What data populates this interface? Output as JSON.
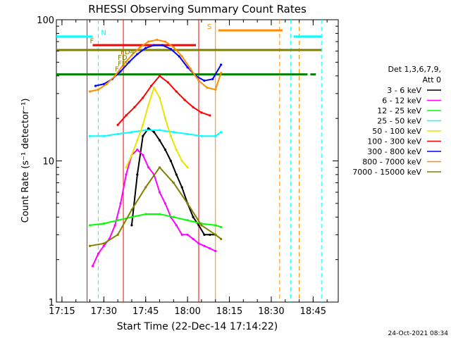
{
  "chart_data": {
    "type": "line",
    "title": "RHESSI Observing Summary Count Rates",
    "xlabel": "Start Time (22-Dec-14 17:14:22)",
    "ylabel": "Count Rate (s⁻¹ detector⁻¹)",
    "yscale": "log",
    "ylim": [
      1,
      100
    ],
    "xlim": [
      "17:13",
      "18:54"
    ],
    "x_ticks": [
      "17:15",
      "17:30",
      "17:45",
      "18:00",
      "18:15",
      "18:30",
      "18:45"
    ],
    "y_ticks": [
      "1",
      "10",
      "100"
    ],
    "legend_title": [
      "Det 1,3,6,7,9,",
      "Att 0"
    ],
    "legend_position": "right",
    "timestamp": "24-Oct-2021 08:34",
    "series": [
      {
        "name": "3 - 6 keV",
        "color": "#000000",
        "x": [
          "17:40",
          "17:42",
          "17:44",
          "17:46",
          "17:48",
          "17:50",
          "17:52",
          "17:54",
          "17:56",
          "17:58",
          "18:00",
          "18:02",
          "18:04",
          "18:06",
          "18:08",
          "18:10"
        ],
        "values": [
          3.5,
          8,
          15,
          17,
          16,
          14,
          12,
          10,
          8,
          6.5,
          5,
          4,
          3.5,
          3,
          3,
          3
        ]
      },
      {
        "name": "6 - 12 keV",
        "color": "#ff00ff",
        "x": [
          "17:26",
          "17:28",
          "17:30",
          "17:32",
          "17:34",
          "17:36",
          "17:38",
          "17:40",
          "17:42",
          "17:44",
          "17:46",
          "17:48",
          "17:50",
          "17:52",
          "17:54",
          "17:56",
          "17:58",
          "18:00",
          "18:02",
          "18:04",
          "18:06",
          "18:08",
          "18:10"
        ],
        "values": [
          1.8,
          2.2,
          2.5,
          2.8,
          3.5,
          5,
          8,
          11,
          12,
          11,
          9,
          8,
          6,
          5,
          4,
          3.5,
          3,
          3,
          2.8,
          2.6,
          2.5,
          2.4,
          2.3
        ]
      },
      {
        "name": "12 - 25 keV",
        "color": "#00ff00",
        "x": [
          "17:25",
          "17:30",
          "17:35",
          "17:40",
          "17:45",
          "17:50",
          "17:55",
          "18:00",
          "18:05",
          "18:10",
          "18:12"
        ],
        "values": [
          3.5,
          3.6,
          3.8,
          4,
          4.2,
          4.2,
          4,
          3.8,
          3.6,
          3.5,
          3.4
        ]
      },
      {
        "name": "25 - 50 keV",
        "color": "#00ffff",
        "x": [
          "17:25",
          "17:30",
          "17:35",
          "17:40",
          "17:45",
          "17:50",
          "17:55",
          "18:00",
          "18:05",
          "18:10",
          "18:12"
        ],
        "values": [
          15,
          15,
          15.5,
          16,
          16.5,
          16.5,
          16,
          15.5,
          15,
          15,
          16
        ]
      },
      {
        "name": "50 - 100 keV",
        "color": "#e6e600",
        "x": [
          "17:38",
          "17:40",
          "17:42",
          "17:44",
          "17:46",
          "17:48",
          "17:50",
          "17:52",
          "17:54",
          "17:56",
          "17:58",
          "18:00"
        ],
        "values": [
          9,
          11,
          14,
          18,
          25,
          33,
          28,
          20,
          15,
          12,
          10,
          9
        ]
      },
      {
        "name": "100 - 300 keV",
        "color": "#ff0000",
        "x": [
          "17:35",
          "17:38",
          "17:41",
          "17:44",
          "17:47",
          "17:50",
          "17:53",
          "17:56",
          "17:59",
          "18:02",
          "18:05",
          "18:08"
        ],
        "values": [
          18,
          21,
          24,
          28,
          34,
          40,
          36,
          31,
          27,
          24,
          22,
          21
        ]
      },
      {
        "name": "300 - 800 keV",
        "color": "#0000ff",
        "x": [
          "17:27",
          "17:30",
          "17:33",
          "17:36",
          "17:39",
          "17:42",
          "17:45",
          "17:48",
          "17:51",
          "17:54",
          "17:57",
          "18:00",
          "18:03",
          "18:06",
          "18:09",
          "18:12"
        ],
        "values": [
          34,
          35,
          38,
          43,
          50,
          57,
          63,
          66,
          66,
          62,
          55,
          46,
          40,
          37,
          38,
          48
        ]
      },
      {
        "name": "800 - 7000 keV",
        "color": "#ff8c00",
        "x": [
          "17:25",
          "17:28",
          "17:31",
          "17:34",
          "17:37",
          "17:40",
          "17:43",
          "17:46",
          "17:49",
          "17:52",
          "17:55",
          "17:58",
          "18:01",
          "18:04",
          "18:07",
          "18:10",
          "18:12"
        ],
        "values": [
          31,
          32,
          35,
          40,
          48,
          56,
          64,
          70,
          72,
          70,
          64,
          55,
          45,
          37,
          33,
          32,
          42
        ]
      },
      {
        "name": "7000 - 15000 keV",
        "color": "#808000",
        "x": [
          "17:25",
          "17:30",
          "17:35",
          "17:40",
          "17:45",
          "17:50",
          "17:55",
          "18:00",
          "18:05",
          "18:10",
          "18:12"
        ],
        "values": [
          2.5,
          2.6,
          3,
          4.5,
          6.5,
          9,
          7,
          5,
          3.5,
          3,
          2.8
        ]
      }
    ],
    "flag_lines": [
      {
        "color": "#00ffff",
        "y": 76,
        "segments": [
          [
            "17:13",
            "17:26"
          ],
          [
            "18:38",
            "18:48"
          ]
        ]
      },
      {
        "color": "#ff0000",
        "y": 66,
        "segments": [
          [
            "17:26",
            "18:03"
          ]
        ]
      },
      {
        "color": "#ff8c00",
        "y": 84,
        "segments": [
          [
            "18:11",
            "18:34"
          ]
        ]
      },
      {
        "color": "#808000",
        "y": 61,
        "segments": [
          [
            "17:13",
            "18:48"
          ]
        ]
      },
      {
        "color": "#008000",
        "y": 41,
        "segments": [
          [
            "17:13",
            "18:33"
          ],
          [
            "18:33",
            "18:43"
          ],
          [
            "18:44",
            "18:46"
          ]
        ]
      }
    ],
    "vertical_lines": [
      {
        "color": "#00ffff",
        "style": "dashed",
        "x": "17:28"
      },
      {
        "color": "#00ffff",
        "style": "dashed",
        "x": "18:37"
      },
      {
        "color": "#00ffff",
        "style": "dashed",
        "x": "18:48"
      },
      {
        "color": "#ff8c00",
        "style": "dashed",
        "x": "18:33"
      },
      {
        "color": "#ff8c00",
        "style": "dashed",
        "x": "18:40"
      },
      {
        "color": "#ff8c00",
        "style": "solid",
        "x": "18:10"
      },
      {
        "color": "#ff0000",
        "style": "solid",
        "x": "17:24"
      },
      {
        "color": "#ff0000",
        "style": "solid",
        "x": "17:37"
      },
      {
        "color": "#ff0000",
        "style": "solid",
        "x": "18:04"
      }
    ],
    "annotations": [
      {
        "text": "N",
        "color": "#00ffff",
        "x": "17:29",
        "y": 78
      },
      {
        "text": "S",
        "color": "#ff8c00",
        "x": "18:07",
        "y": 86
      },
      {
        "text": "F",
        "color": "#808000",
        "x": "17:25",
        "y": 68
      },
      {
        "text": "FD4",
        "color": "#808000",
        "x": "17:36",
        "y": 57
      },
      {
        "text": "FD",
        "color": "#808000",
        "x": "17:35",
        "y": 52
      },
      {
        "text": "FD",
        "color": "#808000",
        "x": "17:35",
        "y": 47
      },
      {
        "text": "F",
        "color": "#808000",
        "x": "17:34",
        "y": 43
      }
    ]
  }
}
